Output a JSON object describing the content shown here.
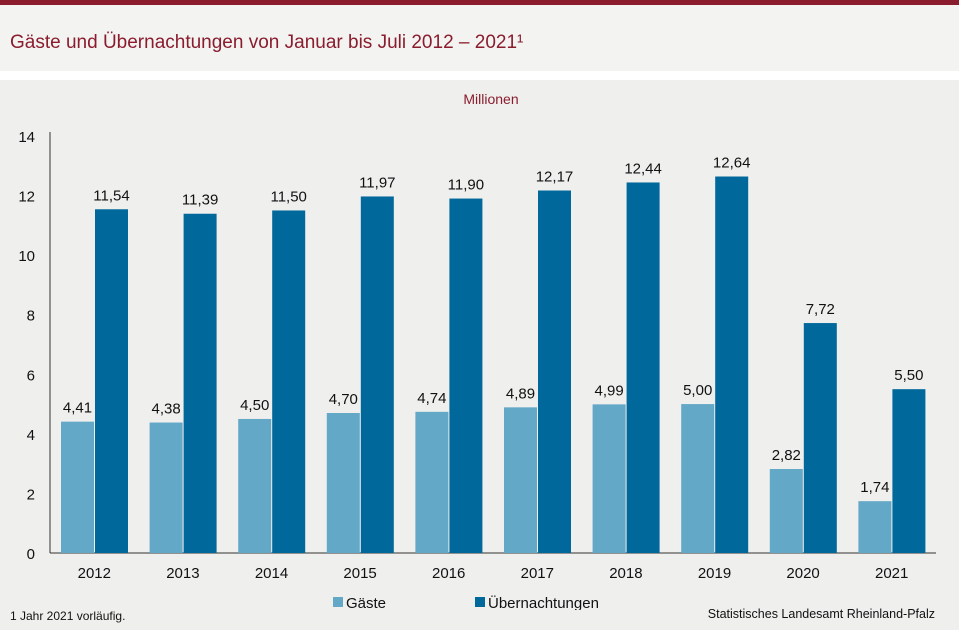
{
  "header": {
    "title": "Gäste und Übernachtungen von Januar bis Juli 2012 – 2021¹"
  },
  "footer": {
    "footnote": "1 Jahr 2021 vorläufig.",
    "source": "Statistisches Landesamt Rheinland-Pfalz"
  },
  "colors": {
    "accent": "#8a1c2e",
    "gaeste": "#64a8c7",
    "uebernachtungen": "#00689b"
  },
  "chart_data": {
    "type": "bar",
    "title": "Gäste und Übernachtungen von Januar bis Juli 2012 – 2021¹",
    "unit_label": "Millionen",
    "categories": [
      "2012",
      "2013",
      "2014",
      "2015",
      "2016",
      "2017",
      "2018",
      "2019",
      "2020",
      "2021"
    ],
    "series": [
      {
        "name": "Gäste",
        "color": "#64a8c7",
        "values": [
          4.41,
          4.38,
          4.5,
          4.7,
          4.74,
          4.89,
          4.99,
          5.0,
          2.82,
          1.74
        ],
        "value_labels": [
          "4,41",
          "4,38",
          "4,50",
          "4,70",
          "4,74",
          "4,89",
          "4,99",
          "5,00",
          "2,82",
          "1,74"
        ]
      },
      {
        "name": "Übernachtungen",
        "color": "#00689b",
        "values": [
          11.54,
          11.39,
          11.5,
          11.97,
          11.9,
          12.17,
          12.44,
          12.64,
          7.72,
          5.5
        ],
        "value_labels": [
          "11,54",
          "11,39",
          "11,50",
          "11,97",
          "11,90",
          "12,17",
          "12,44",
          "12,64",
          "7,72",
          "5,50"
        ]
      }
    ],
    "ylim": [
      0,
      14
    ],
    "yticks": [
      0,
      2,
      4,
      6,
      8,
      10,
      12,
      14
    ],
    "grid": false,
    "legend": "bottom-center"
  }
}
